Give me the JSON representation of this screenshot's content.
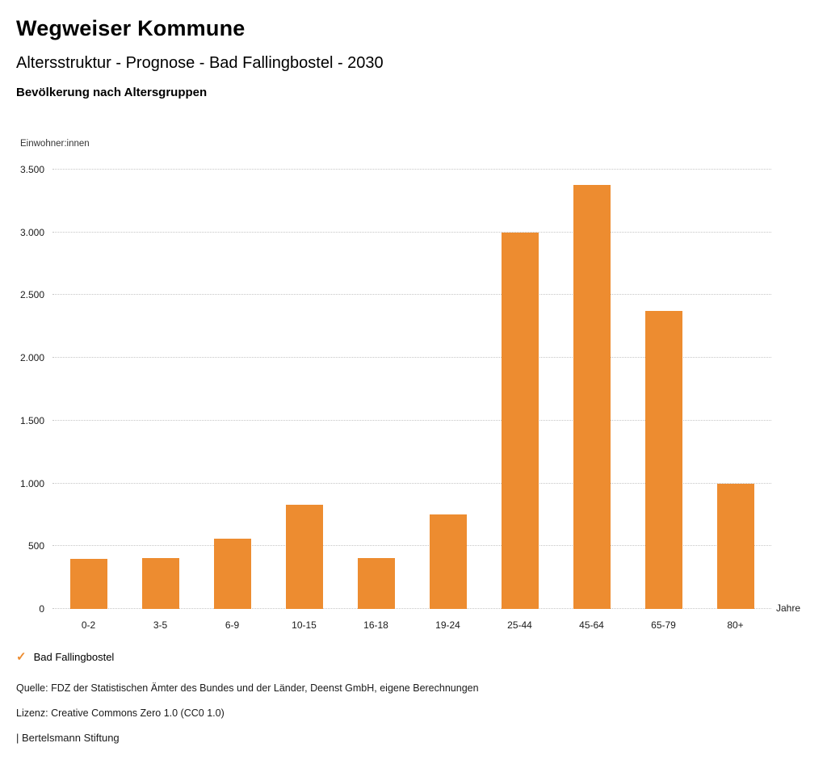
{
  "header": {
    "title": "Wegweiser Kommune",
    "subtitle": "Altersstruktur - Prognose - Bad Fallingbostel - 2030",
    "section_title": "Bevölkerung nach Altersgruppen"
  },
  "chart_data": {
    "type": "bar",
    "title": "Bevölkerung nach Altersgruppen",
    "ylabel": "Einwohner:innen",
    "xlabel": "Jahre",
    "categories": [
      "0-2",
      "3-5",
      "6-9",
      "10-15",
      "16-18",
      "19-24",
      "25-44",
      "45-64",
      "65-79",
      "80+"
    ],
    "values": [
      400,
      405,
      560,
      830,
      405,
      750,
      3000,
      3380,
      2375,
      1000
    ],
    "ylim": [
      0,
      3500
    ],
    "ytick_step": 500,
    "ytick_labels": [
      "0",
      "500",
      "1.000",
      "1.500",
      "2.000",
      "2.500",
      "3.000",
      "3.500"
    ],
    "grid": "horizontal-dotted",
    "bar_color": "#ED8C30",
    "legend": [
      {
        "label": "Bad Fallingbostel",
        "color": "#ED8C30"
      }
    ],
    "legend_position": "bottom-left"
  },
  "footer": {
    "source": "Quelle: FDZ der Statistischen Ämter des Bundes und der Länder, Deenst GmbH, eigene Berechnungen",
    "license": "Lizenz: Creative Commons Zero 1.0 (CC0 1.0)",
    "attribution": "| Bertelsmann Stiftung"
  }
}
